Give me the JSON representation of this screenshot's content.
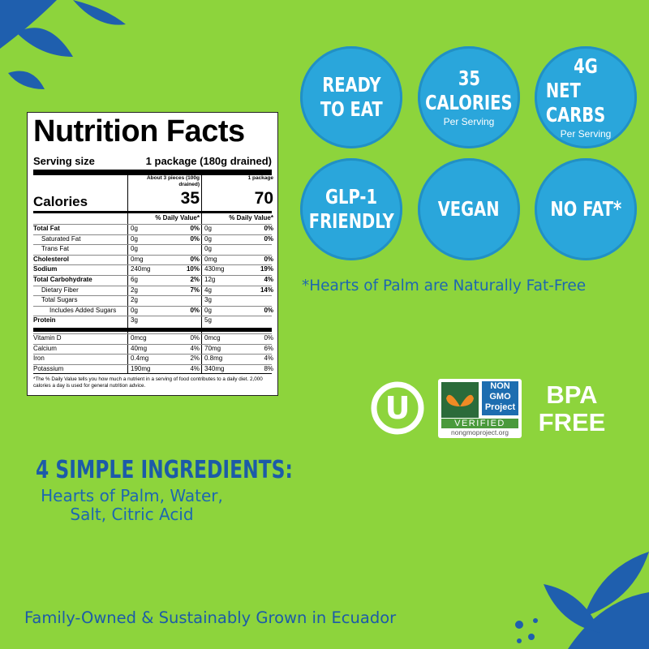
{
  "nutrition": {
    "title": "Nutrition Facts",
    "serving_size_label": "Serving size",
    "serving_size": "1 package (180g drained)",
    "calories_label": "Calories",
    "columns": [
      {
        "serving": "About 3 pieces (100g drained)",
        "calories": 35
      },
      {
        "serving": "1 package",
        "calories": 70
      }
    ],
    "dv_header": "% Daily Value*",
    "rows": [
      {
        "name": "Total Fat",
        "bold": true,
        "indent": 0,
        "cells": [
          "0g",
          "0%",
          "0g",
          "0%"
        ]
      },
      {
        "name": "Saturated Fat",
        "bold": false,
        "indent": 1,
        "cells": [
          "0g",
          "0%",
          "0g",
          "0%"
        ]
      },
      {
        "name": "Trans Fat",
        "bold": false,
        "indent": 1,
        "cells": [
          "0g",
          null,
          "0g",
          null
        ]
      },
      {
        "name": "Cholesterol",
        "bold": true,
        "indent": 0,
        "cells": [
          "0mg",
          "0%",
          "0mg",
          "0%"
        ]
      },
      {
        "name": "Sodium",
        "bold": true,
        "indent": 0,
        "cells": [
          "240mg",
          "10%",
          "430mg",
          "19%"
        ]
      },
      {
        "name": "Total Carbohydrate",
        "bold": true,
        "indent": 0,
        "cells": [
          "6g",
          "2%",
          "12g",
          "4%"
        ]
      },
      {
        "name": "Dietary Fiber",
        "bold": false,
        "indent": 1,
        "cells": [
          "2g",
          "7%",
          "4g",
          "14%"
        ]
      },
      {
        "name": "Total Sugars",
        "bold": false,
        "indent": 1,
        "cells": [
          "2g",
          null,
          "3g",
          null
        ]
      },
      {
        "name": "Includes Added Sugars",
        "bold": false,
        "indent": 2,
        "cells": [
          "0g",
          "0%",
          "0g",
          "0%"
        ]
      },
      {
        "name": "Protein",
        "bold": true,
        "indent": 0,
        "cells": [
          "3g",
          null,
          "5g",
          null
        ]
      }
    ],
    "vitamins": [
      {
        "name": "Vitamin D",
        "cells": [
          "0mcg",
          "0%",
          "0mcg",
          "0%"
        ]
      },
      {
        "name": "Calcium",
        "cells": [
          "40mg",
          "4%",
          "70mg",
          "6%"
        ]
      },
      {
        "name": "Iron",
        "cells": [
          "0.4mg",
          "2%",
          "0.8mg",
          "4%"
        ]
      },
      {
        "name": "Potassium",
        "cells": [
          "190mg",
          "4%",
          "340mg",
          "8%"
        ]
      }
    ],
    "footnote": "*The % Daily Value tells you how much a nutrient in a serving of food contributes to a daily diet. 2,000 calories a day is used for general nutrition advice."
  },
  "badges": [
    {
      "lines": [
        "READY",
        "TO EAT"
      ]
    },
    {
      "lines": [
        "35",
        "CALORIES"
      ],
      "sub": "Per Serving"
    },
    {
      "lines": [
        "4G",
        "NET CARBS"
      ],
      "sub": "Per Serving"
    },
    {
      "lines": [
        "GLP-1",
        "FRIENDLY"
      ]
    },
    {
      "lines": [
        "VEGAN"
      ]
    },
    {
      "lines": [
        "NO FAT*"
      ]
    }
  ],
  "fat_note": "*Hearts of  Palm are Naturally Fat-Free",
  "certifications": {
    "kosher": "U",
    "non_gmo": {
      "lines": [
        "NON",
        "GMO",
        "Project"
      ],
      "verified": "VERIFIED",
      "url": "nongmoproject.org"
    },
    "bpa": [
      "BPA",
      "FREE"
    ]
  },
  "ingredients": {
    "heading": "4 SIMPLE INGREDIENTS:",
    "lines": [
      "Hearts of Palm, Water,",
      "Salt, Citric Acid"
    ]
  },
  "tagline": "Family-Owned & Sustainably Grown in Ecuador"
}
